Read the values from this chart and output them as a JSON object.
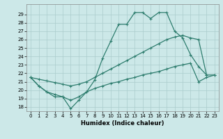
{
  "xlabel": "Humidex (Indice chaleur)",
  "x": [
    0,
    1,
    2,
    3,
    4,
    5,
    6,
    7,
    8,
    9,
    10,
    11,
    12,
    13,
    14,
    15,
    16,
    17,
    18,
    19,
    20,
    21,
    22,
    23
  ],
  "y_top": [
    21.5,
    20.5,
    19.8,
    19.2,
    19.2,
    17.8,
    18.8,
    19.8,
    21.2,
    23.8,
    25.8,
    27.8,
    27.8,
    29.2,
    29.2,
    28.5,
    29.2,
    29.2,
    27.0,
    26.2,
    24.2,
    22.8,
    21.8,
    null
  ],
  "y_mid": [
    21.5,
    21.3,
    21.1,
    20.9,
    20.7,
    20.5,
    20.7,
    21.0,
    21.5,
    22.0,
    22.5,
    23.0,
    23.5,
    24.0,
    24.5,
    25.0,
    25.5,
    26.0,
    26.3,
    26.5,
    26.2,
    26.0,
    21.8,
    21.8
  ],
  "y_bot": [
    21.5,
    20.5,
    19.8,
    19.5,
    19.2,
    18.8,
    19.2,
    19.8,
    20.2,
    20.5,
    20.8,
    21.0,
    21.3,
    21.5,
    21.8,
    22.0,
    22.2,
    22.5,
    22.8,
    23.0,
    23.2,
    21.0,
    21.5,
    21.8
  ],
  "ylim": [
    17.5,
    30.2
  ],
  "xlim": [
    -0.5,
    23.5
  ],
  "yticks": [
    18,
    19,
    20,
    21,
    22,
    23,
    24,
    25,
    26,
    27,
    28,
    29
  ],
  "xticks": [
    0,
    1,
    2,
    3,
    4,
    5,
    6,
    7,
    8,
    9,
    10,
    11,
    12,
    13,
    14,
    15,
    16,
    17,
    18,
    19,
    20,
    21,
    22,
    23
  ],
  "line_color": "#2e7d6e",
  "bg_color": "#cce8e8",
  "grid_color": "#aacccc"
}
